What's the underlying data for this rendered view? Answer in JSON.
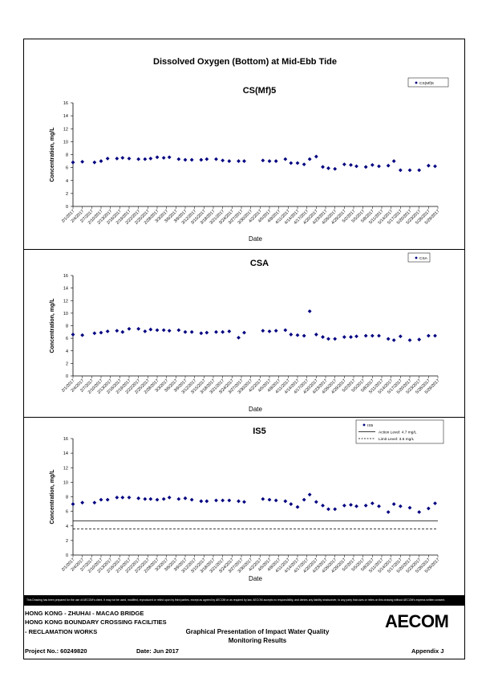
{
  "page": {
    "main_title": "Dissolved Oxygen (Bottom) at Mid-Ebb Tide",
    "disclaimer": "This Drawing has been prepared for the use of AECOM's client. It may not be used, modified, reproduced or relied upon by third parties, except as agreed by AECOM or as required by law. AECOM accepts no responsibility, and denies any liability whatsoever, to any party that uses or relies on this drawing without AECOM's express written consent.",
    "logo_text": "AECOM"
  },
  "footer": {
    "project_line1": "HONG KONG - ZHUHAI - MACAO BRIDGE",
    "project_line2": "HONG KONG BOUNDARY CROSSING FACILITIES",
    "project_line3": "- RECLAMATION WORKS",
    "project_no": "Project No.: 60249820",
    "date": "Date: Jun 2017",
    "title_line1": "Graphical Presentation of Impact Water Quality",
    "title_line2": "Monitoring Results",
    "appendix": "Appendix J"
  },
  "chart_data": [
    {
      "type": "scatter",
      "title": "CS(Mf)5",
      "xlabel": "Date",
      "ylabel": "Concentration, mg/L",
      "ylim": [
        0,
        16
      ],
      "yticks": [
        0,
        2,
        4,
        6,
        8,
        10,
        12,
        14,
        16
      ],
      "xticks": [
        "2/1/2017",
        "2/4/2017",
        "2/7/2017",
        "2/10/2017",
        "2/13/2017",
        "2/16/2017",
        "2/19/2017",
        "2/22/2017",
        "2/25/2017",
        "2/28/2017",
        "3/3/2017",
        "3/6/2017",
        "3/9/2017",
        "3/12/2017",
        "3/15/2017",
        "3/18/2017",
        "3/21/2017",
        "3/24/2017",
        "3/27/2017",
        "3/30/2017",
        "4/2/2017",
        "4/5/2017",
        "4/8/2017",
        "4/11/2017",
        "4/14/2017",
        "4/17/2017",
        "4/20/2017",
        "4/23/2017",
        "4/26/2017",
        "4/29/2017",
        "5/2/2017",
        "5/5/2017",
        "5/8/2017",
        "5/11/2017",
        "5/14/2017",
        "5/17/2017",
        "5/20/2017",
        "5/23/2017",
        "5/26/2017",
        "5/29/2017"
      ],
      "legend": [
        {
          "label": "CS(Mf)5",
          "style": "marker"
        }
      ],
      "series": [
        {
          "name": "CS(Mf)5",
          "color": "#000080",
          "points": [
            [
              0,
              6.8
            ],
            [
              1,
              6.9
            ],
            [
              2.3,
              6.8
            ],
            [
              3,
              7.0
            ],
            [
              3.7,
              7.4
            ],
            [
              4.7,
              7.4
            ],
            [
              5.3,
              7.5
            ],
            [
              6,
              7.4
            ],
            [
              7,
              7.3
            ],
            [
              7.7,
              7.3
            ],
            [
              8.3,
              7.4
            ],
            [
              9,
              7.6
            ],
            [
              9.7,
              7.5
            ],
            [
              10.3,
              7.6
            ],
            [
              11.3,
              7.3
            ],
            [
              12,
              7.2
            ],
            [
              12.7,
              7.2
            ],
            [
              13.7,
              7.2
            ],
            [
              14.3,
              7.3
            ],
            [
              15.3,
              7.3
            ],
            [
              16,
              7.1
            ],
            [
              16.7,
              7.0
            ],
            [
              17.7,
              7.0
            ],
            [
              18.3,
              7.0
            ],
            [
              20.3,
              7.1
            ],
            [
              21,
              7.0
            ],
            [
              21.7,
              7.0
            ],
            [
              22.7,
              7.3
            ],
            [
              23.3,
              6.7
            ],
            [
              24,
              6.7
            ],
            [
              24.7,
              6.5
            ],
            [
              25.3,
              7.3
            ],
            [
              26,
              7.7
            ],
            [
              26.7,
              6.1
            ],
            [
              27.3,
              5.9
            ],
            [
              28,
              5.8
            ],
            [
              29,
              6.5
            ],
            [
              29.7,
              6.4
            ],
            [
              30.3,
              6.2
            ],
            [
              31.3,
              6.1
            ],
            [
              32,
              6.4
            ],
            [
              32.7,
              6.2
            ],
            [
              33.7,
              6.3
            ],
            [
              34.3,
              7.0
            ],
            [
              35,
              5.6
            ],
            [
              36,
              5.6
            ],
            [
              37,
              5.6
            ],
            [
              38,
              6.3
            ],
            [
              38.7,
              6.2
            ]
          ]
        }
      ]
    },
    {
      "type": "scatter",
      "title": "CSA",
      "xlabel": "Date",
      "ylabel": "Concentration, mg/L",
      "ylim": [
        0,
        16
      ],
      "yticks": [
        0,
        2,
        4,
        6,
        8,
        10,
        12,
        14,
        16
      ],
      "xticks": [
        "2/1/2017",
        "2/4/2017",
        "2/7/2017",
        "2/10/2017",
        "2/13/2017",
        "2/16/2017",
        "2/19/2017",
        "2/22/2017",
        "2/25/2017",
        "2/28/2017",
        "3/3/2017",
        "3/6/2017",
        "3/9/2017",
        "3/12/2017",
        "3/15/2017",
        "3/18/2017",
        "3/21/2017",
        "3/24/2017",
        "3/27/2017",
        "3/30/2017",
        "4/2/2017",
        "4/5/2017",
        "4/8/2017",
        "4/11/2017",
        "4/14/2017",
        "4/17/2017",
        "4/20/2017",
        "4/23/2017",
        "4/26/2017",
        "4/29/2017",
        "5/2/2017",
        "5/5/2017",
        "5/8/2017",
        "5/11/2017",
        "5/14/2017",
        "5/17/2017",
        "5/20/2017",
        "5/23/2017",
        "5/26/2017",
        "5/29/2017"
      ],
      "legend": [
        {
          "label": "CSA",
          "style": "marker"
        }
      ],
      "series": [
        {
          "name": "CSA",
          "color": "#000080",
          "points": [
            [
              0,
              6.6
            ],
            [
              1,
              6.5
            ],
            [
              2.3,
              6.8
            ],
            [
              3,
              6.9
            ],
            [
              3.7,
              7.1
            ],
            [
              4.7,
              7.2
            ],
            [
              5.3,
              7.0
            ],
            [
              6,
              7.5
            ],
            [
              7,
              7.5
            ],
            [
              7.7,
              7.1
            ],
            [
              8.3,
              7.4
            ],
            [
              9,
              7.3
            ],
            [
              9.7,
              7.3
            ],
            [
              10.3,
              7.2
            ],
            [
              11.3,
              7.3
            ],
            [
              12,
              7.0
            ],
            [
              12.7,
              7.0
            ],
            [
              13.7,
              6.8
            ],
            [
              14.3,
              6.9
            ],
            [
              15.3,
              7.0
            ],
            [
              16,
              7.0
            ],
            [
              16.7,
              7.1
            ],
            [
              17.7,
              6.1
            ],
            [
              18.3,
              6.9
            ],
            [
              20.3,
              7.2
            ],
            [
              21,
              7.1
            ],
            [
              21.7,
              7.2
            ],
            [
              22.7,
              7.3
            ],
            [
              23.3,
              6.6
            ],
            [
              24,
              6.5
            ],
            [
              24.7,
              6.4
            ],
            [
              25.3,
              10.3
            ],
            [
              26,
              6.6
            ],
            [
              26.7,
              6.2
            ],
            [
              27.3,
              5.9
            ],
            [
              28,
              5.9
            ],
            [
              29,
              6.2
            ],
            [
              29.7,
              6.2
            ],
            [
              30.3,
              6.3
            ],
            [
              31.3,
              6.4
            ],
            [
              32,
              6.4
            ],
            [
              32.7,
              6.4
            ],
            [
              33.7,
              5.9
            ],
            [
              34.3,
              5.7
            ],
            [
              35,
              6.3
            ],
            [
              36,
              5.7
            ],
            [
              37,
              5.8
            ],
            [
              38,
              6.4
            ],
            [
              38.7,
              6.4
            ]
          ]
        }
      ]
    },
    {
      "type": "scatter",
      "title": "IS5",
      "xlabel": "Date",
      "ylabel": "Concentration, mg/L",
      "ylim": [
        0,
        16
      ],
      "yticks": [
        0,
        2,
        4,
        6,
        8,
        10,
        12,
        14,
        16
      ],
      "xticks": [
        "2/1/2017",
        "2/4/2017",
        "2/7/2017",
        "2/10/2017",
        "2/13/2017",
        "2/16/2017",
        "2/19/2017",
        "2/22/2017",
        "2/25/2017",
        "2/28/2017",
        "3/3/2017",
        "3/6/2017",
        "3/9/2017",
        "3/12/2017",
        "3/15/2017",
        "3/18/2017",
        "3/21/2017",
        "3/24/2017",
        "3/27/2017",
        "3/30/2017",
        "4/2/2017",
        "4/5/2017",
        "4/8/2017",
        "4/11/2017",
        "4/14/2017",
        "4/17/2017",
        "4/20/2017",
        "4/23/2017",
        "4/26/2017",
        "4/29/2017",
        "5/2/2017",
        "5/5/2017",
        "5/8/2017",
        "5/11/2017",
        "5/14/2017",
        "5/17/2017",
        "5/20/2017",
        "5/23/2017",
        "5/26/2017",
        "5/29/2017"
      ],
      "legend": [
        {
          "label": "IS5",
          "style": "marker"
        },
        {
          "label": "Action Level: 4.7 mg/L",
          "style": "solid"
        },
        {
          "label": "Limit Level: 3.6 mg/L",
          "style": "dashed"
        }
      ],
      "reference_lines": [
        {
          "value": 4.7,
          "style": "solid"
        },
        {
          "value": 3.6,
          "style": "dashed"
        }
      ],
      "series": [
        {
          "name": "IS5",
          "color": "#000080",
          "points": [
            [
              0,
              7.0
            ],
            [
              1,
              7.2
            ],
            [
              2.3,
              7.2
            ],
            [
              3,
              7.6
            ],
            [
              3.7,
              7.6
            ],
            [
              4.7,
              7.9
            ],
            [
              5.3,
              7.9
            ],
            [
              6,
              7.9
            ],
            [
              7,
              7.8
            ],
            [
              7.7,
              7.7
            ],
            [
              8.3,
              7.7
            ],
            [
              9,
              7.6
            ],
            [
              9.7,
              7.7
            ],
            [
              10.3,
              7.9
            ],
            [
              11.3,
              7.7
            ],
            [
              12,
              7.8
            ],
            [
              12.7,
              7.6
            ],
            [
              13.7,
              7.4
            ],
            [
              14.3,
              7.4
            ],
            [
              15.3,
              7.5
            ],
            [
              16,
              7.5
            ],
            [
              16.7,
              7.5
            ],
            [
              17.7,
              7.4
            ],
            [
              18.3,
              7.3
            ],
            [
              20.3,
              7.7
            ],
            [
              21,
              7.6
            ],
            [
              21.7,
              7.5
            ],
            [
              22.7,
              7.4
            ],
            [
              23.3,
              7.0
            ],
            [
              24,
              6.6
            ],
            [
              24.7,
              7.6
            ],
            [
              25.3,
              8.3
            ],
            [
              26,
              7.3
            ],
            [
              26.7,
              6.8
            ],
            [
              27.3,
              6.3
            ],
            [
              28,
              6.3
            ],
            [
              29,
              6.8
            ],
            [
              29.7,
              6.9
            ],
            [
              30.3,
              6.7
            ],
            [
              31.3,
              6.8
            ],
            [
              32,
              7.1
            ],
            [
              32.7,
              6.7
            ],
            [
              33.7,
              5.9
            ],
            [
              34.3,
              7.0
            ],
            [
              35,
              6.7
            ],
            [
              36,
              6.5
            ],
            [
              37,
              5.9
            ],
            [
              38,
              6.4
            ],
            [
              38.7,
              7.1
            ]
          ]
        }
      ]
    }
  ]
}
